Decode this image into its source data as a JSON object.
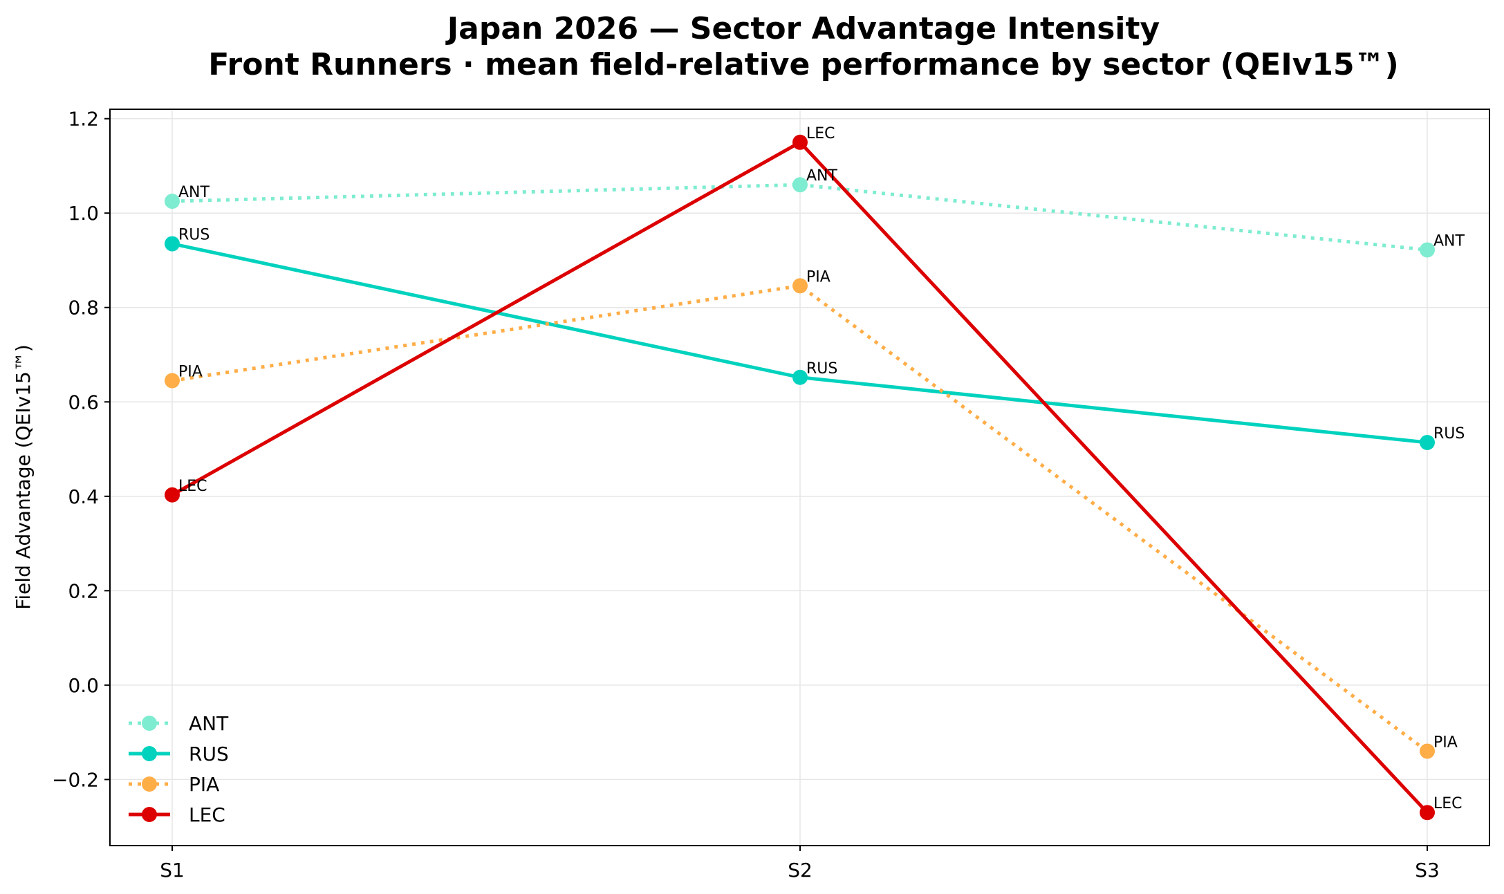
{
  "chart_data": {
    "type": "line",
    "title": "Japan 2026 — Sector Advantage Intensity",
    "subtitle": "Front Runners · mean field-relative performance by sector (QEIv15™)",
    "xlabel": "",
    "ylabel": "Field Advantage (QEIv15™)",
    "categories": [
      "S1",
      "S2",
      "S3"
    ],
    "ylim": [
      -0.34,
      1.22
    ],
    "yticks": [
      -0.2,
      0.0,
      0.2,
      0.4,
      0.6,
      0.8,
      1.0,
      1.2
    ],
    "ytick_labels": [
      "−0.2",
      "0.0",
      "0.2",
      "0.4",
      "0.6",
      "0.8",
      "1.0",
      "1.2"
    ],
    "grid": true,
    "legend_position": "lower-left",
    "series": [
      {
        "name": "ANT",
        "values": [
          1.025,
          1.06,
          0.922
        ],
        "color": "#7eecd0",
        "style": "dotted"
      },
      {
        "name": "RUS",
        "values": [
          0.935,
          0.652,
          0.514
        ],
        "color": "#00d2be",
        "style": "solid"
      },
      {
        "name": "PIA",
        "values": [
          0.645,
          0.846,
          -0.14
        ],
        "color": "#ffad47",
        "style": "dotted"
      },
      {
        "name": "LEC",
        "values": [
          0.403,
          1.15,
          -0.27
        ],
        "color": "#dc0000",
        "style": "solid"
      }
    ]
  }
}
